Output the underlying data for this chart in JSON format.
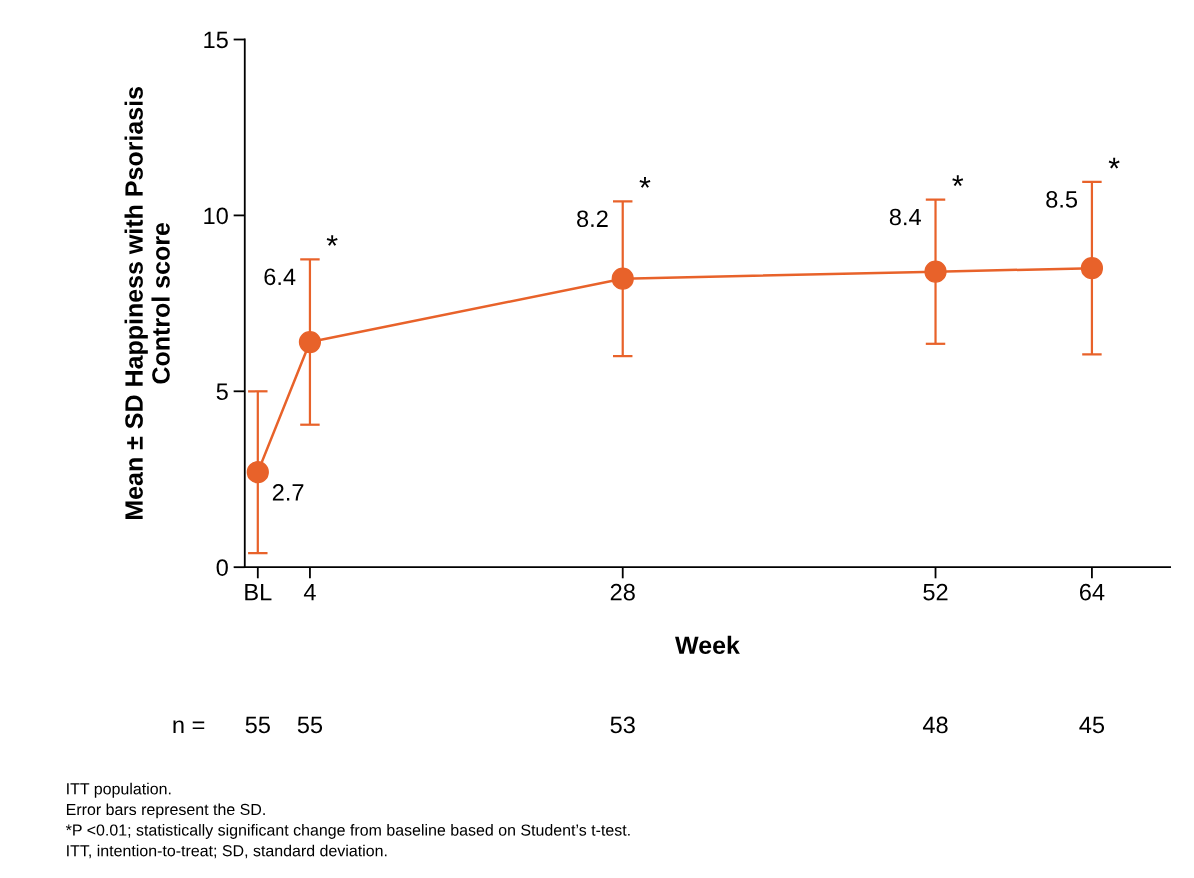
{
  "chart_data": {
    "type": "line",
    "xlabel": "Week",
    "ylabel": "Mean ± SD Happiness with Psoriasis\nControl score",
    "x": [
      0,
      4,
      28,
      52,
      64
    ],
    "values": [
      2.7,
      6.4,
      8.2,
      8.4,
      8.5
    ],
    "errors": [
      2.3,
      2.35,
      2.2,
      2.05,
      2.45
    ],
    "color": "#e8622a",
    "marker": "circle",
    "line_style": "solid",
    "data_labels": true,
    "grid": false,
    "xlim": [
      -1,
      70
    ],
    "xticks": [
      {
        "value": 0,
        "label": "BL"
      },
      4,
      28,
      52,
      64
    ],
    "ylim": [
      0,
      15
    ],
    "yticks": [
      0,
      5,
      10,
      15
    ],
    "annotations": [
      "*",
      "*",
      "*",
      "*",
      "n =",
      "55",
      "55",
      "53",
      "48",
      "45",
      "ITT population.",
      "Error bars represent the SD.",
      "*P <0.01; statistically significant change from baseline based on Student’s t-test.",
      "ITT, intention-to-treat; SD, standard deviation."
    ]
  }
}
